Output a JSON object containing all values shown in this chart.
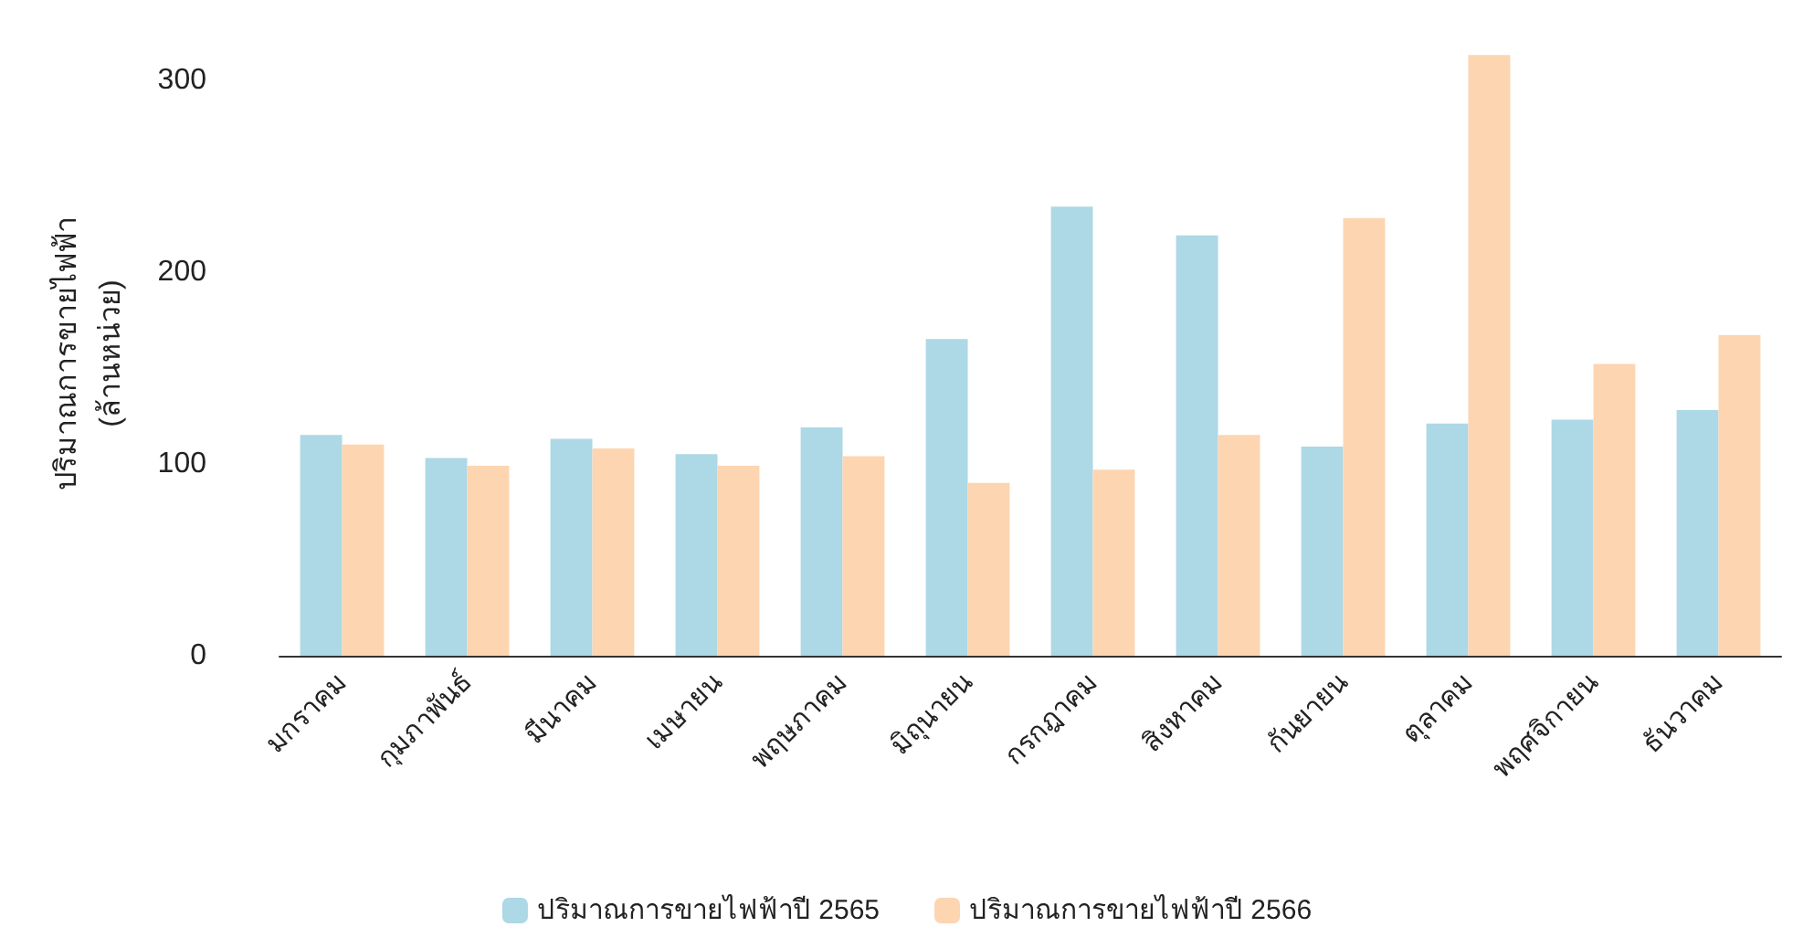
{
  "chart_data": {
    "type": "bar",
    "ylabel": "ปริมาณการขายไฟฟ้า\n(ล้านหน่วย)",
    "categories": [
      "มกราคม",
      "กุมภาพันธ์",
      "มีนาคม",
      "เมษายน",
      "พฤษภาคม",
      "มิถุนายน",
      "กรกฎาคม",
      "สิงหาคม",
      "กันยายน",
      "ตุลาคม",
      "พฤศจิกายน",
      "ธันวาคม"
    ],
    "series": [
      {
        "name": "ปริมาณการขายไฟฟ้าปี 2565",
        "color": "#add8e6",
        "values": [
          115,
          103,
          113,
          105,
          119,
          165,
          234,
          219,
          109,
          121,
          123,
          128
        ]
      },
      {
        "name": "ปริมาณการขายไฟฟ้าปี 2566",
        "color": "#fdd5b1",
        "values": [
          110,
          99,
          108,
          99,
          104,
          90,
          97,
          115,
          228,
          313,
          152,
          167
        ]
      }
    ],
    "ylim": [
      0,
      315
    ],
    "yticks": [
      0,
      100,
      200,
      300
    ],
    "grid": false,
    "legend": "bottom"
  }
}
